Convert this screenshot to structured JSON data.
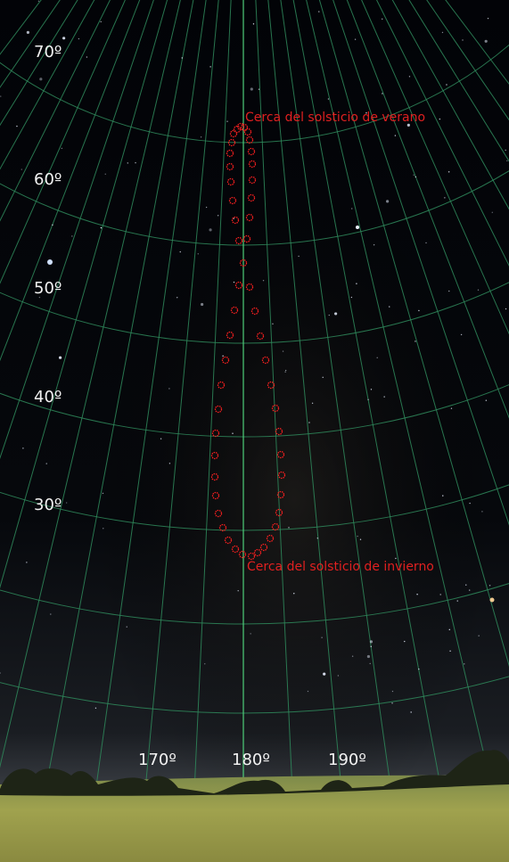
{
  "altitude_labels": [
    "70º",
    "60º",
    "50º",
    "40º",
    "30º"
  ],
  "azimuth_labels": [
    "170º",
    "180º",
    "190º"
  ],
  "annotations": {
    "summer": "Cerca del solsticio de verano",
    "winter": "Cerca del solsticio de invierno"
  }
}
